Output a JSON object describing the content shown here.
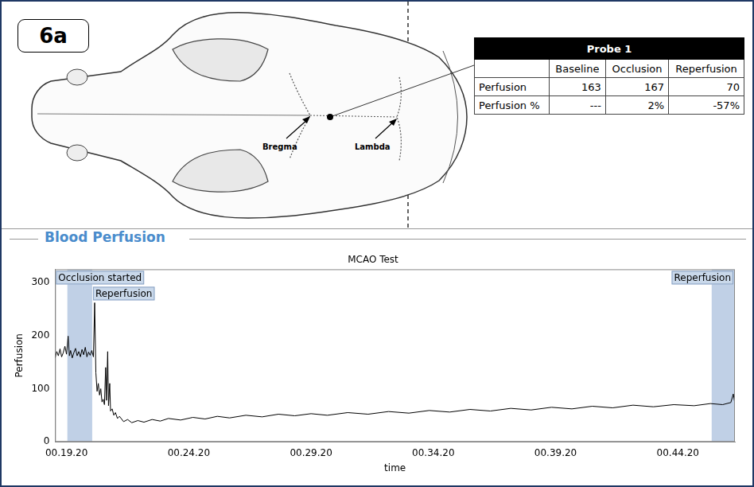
{
  "panel_label": "6a",
  "diagram": {
    "labels": [
      "Bregma",
      "Lambda"
    ]
  },
  "table": {
    "title": "Probe 1",
    "columns": [
      "Baseline",
      "Occlusion",
      "Reperfusion"
    ],
    "rows": [
      {
        "label": "Perfusion",
        "cells": [
          "163",
          "167",
          "70"
        ]
      },
      {
        "label": "Perfusion %",
        "cells": [
          "---",
          "2%",
          "-57%"
        ]
      }
    ]
  },
  "section_title": "Blood Perfusion",
  "chart_data": {
    "type": "line",
    "title": "MCAO Test",
    "x_label": "time",
    "y_label": "Perfusion",
    "color": "#000000",
    "grid": false,
    "x": [
      1132,
      1136,
      1140,
      1144,
      1148,
      1152,
      1156,
      1160,
      1164,
      1167,
      1170,
      1174,
      1178,
      1182,
      1186,
      1190,
      1194,
      1198,
      1202,
      1206,
      1210,
      1214,
      1218,
      1222,
      1226,
      1229,
      1232,
      1235,
      1238,
      1241,
      1244,
      1247,
      1250,
      1253,
      1256,
      1258,
      1261,
      1263,
      1266,
      1268,
      1272,
      1276,
      1280,
      1285,
      1290,
      1300,
      1310,
      1320,
      1335,
      1350,
      1370,
      1390,
      1410,
      1440,
      1470,
      1500,
      1530,
      1560,
      1600,
      1640,
      1680,
      1720,
      1760,
      1800,
      1850,
      1900,
      1950,
      2000,
      2050,
      2100,
      2150,
      2200,
      2250,
      2300,
      2350,
      2400,
      2450,
      2500,
      2550,
      2600,
      2650,
      2700,
      2740,
      2770,
      2790,
      2796,
      2800
    ],
    "values": [
      158,
      170,
      162,
      175,
      160,
      168,
      180,
      165,
      199,
      162,
      172,
      158,
      168,
      176,
      162,
      170,
      160,
      174,
      164,
      178,
      160,
      169,
      163,
      172,
      160,
      262,
      130,
      95,
      110,
      88,
      100,
      75,
      80,
      70,
      140,
      78,
      170,
      68,
      110,
      58,
      62,
      50,
      55,
      44,
      48,
      38,
      42,
      36,
      40,
      37,
      42,
      39,
      44,
      41,
      46,
      43,
      48,
      45,
      50,
      47,
      52,
      49,
      53,
      50,
      55,
      52,
      57,
      54,
      59,
      56,
      61,
      58,
      63,
      60,
      65,
      62,
      67,
      64,
      69,
      66,
      70,
      68,
      72,
      70,
      74,
      90,
      72
    ],
    "xlim": [
      1132,
      2800
    ],
    "xticks": [
      {
        "value": 1160,
        "label": "00.19.20"
      },
      {
        "value": 1460,
        "label": "00.24.20"
      },
      {
        "value": 1760,
        "label": "00.29.20"
      },
      {
        "value": 2060,
        "label": "00.34.20"
      },
      {
        "value": 2360,
        "label": "00.39.20"
      },
      {
        "value": 2660,
        "label": "00.44.20"
      }
    ],
    "ylim": [
      0,
      325
    ],
    "yticks": [
      0,
      100,
      200,
      300
    ],
    "bands": [
      {
        "x0": 1162,
        "x1": 1223,
        "labels": [
          "Occlusion started",
          "Reperfusion"
        ]
      },
      {
        "x0": 2743,
        "x1": 2800,
        "labels": [
          "Reperfusion"
        ]
      }
    ]
  }
}
